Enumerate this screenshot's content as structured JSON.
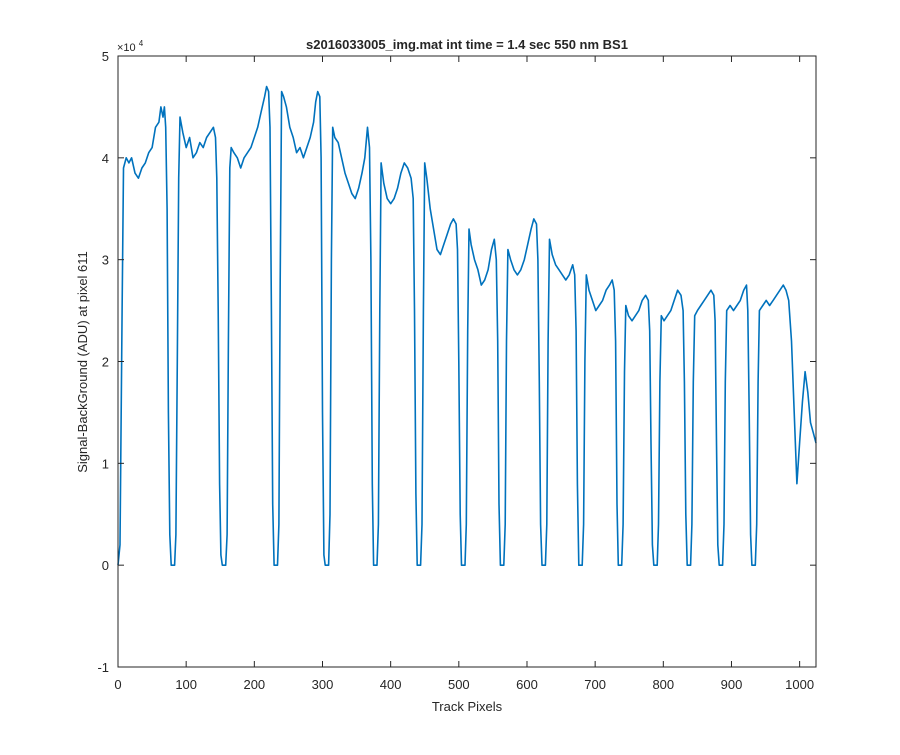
{
  "chart_data": {
    "type": "line",
    "title": "s2016033005_img.mat int time = 1.4 sec  550 nm BS1",
    "xlabel": "Track Pixels",
    "ylabel": "Signal-BackGround (ADU) at pixel 611",
    "xlim": [
      0,
      1024
    ],
    "ylim": [
      -1,
      5
    ],
    "y_multiplier_label": "×10",
    "y_multiplier_exponent": "4",
    "x_ticks": [
      "0",
      "100",
      "200",
      "300",
      "400",
      "500",
      "600",
      "700",
      "800",
      "900",
      "1000"
    ],
    "y_ticks": [
      "-1",
      "0",
      "1",
      "2",
      "3",
      "4",
      "5"
    ],
    "grid": false,
    "line_color": "#0072bd",
    "series": [
      {
        "points": [
          [
            0,
            0
          ],
          [
            3,
            0.2
          ],
          [
            6,
            2.5
          ],
          [
            8,
            3.9
          ],
          [
            12,
            4.0
          ],
          [
            16,
            3.95
          ],
          [
            20,
            4.0
          ],
          [
            25,
            3.85
          ],
          [
            30,
            3.8
          ],
          [
            35,
            3.9
          ],
          [
            40,
            3.95
          ],
          [
            45,
            4.05
          ],
          [
            50,
            4.1
          ],
          [
            55,
            4.3
          ],
          [
            60,
            4.35
          ],
          [
            63,
            4.5
          ],
          [
            66,
            4.4
          ],
          [
            68,
            4.5
          ],
          [
            70,
            4.3
          ],
          [
            72,
            3.5
          ],
          [
            74,
            1.5
          ],
          [
            76,
            0.3
          ],
          [
            78,
            0
          ],
          [
            83,
            0
          ],
          [
            85,
            0.3
          ],
          [
            87,
            2.0
          ],
          [
            89,
            3.8
          ],
          [
            91,
            4.4
          ],
          [
            95,
            4.25
          ],
          [
            100,
            4.1
          ],
          [
            105,
            4.2
          ],
          [
            110,
            4.0
          ],
          [
            115,
            4.05
          ],
          [
            120,
            4.15
          ],
          [
            125,
            4.1
          ],
          [
            130,
            4.2
          ],
          [
            135,
            4.25
          ],
          [
            140,
            4.3
          ],
          [
            143,
            4.2
          ],
          [
            145,
            3.8
          ],
          [
            147,
            2.5
          ],
          [
            149,
            0.8
          ],
          [
            151,
            0.1
          ],
          [
            153,
            0
          ],
          [
            158,
            0
          ],
          [
            160,
            0.3
          ],
          [
            162,
            2.2
          ],
          [
            164,
            3.9
          ],
          [
            166,
            4.1
          ],
          [
            170,
            4.05
          ],
          [
            175,
            4.0
          ],
          [
            180,
            3.9
          ],
          [
            185,
            4.0
          ],
          [
            190,
            4.05
          ],
          [
            195,
            4.1
          ],
          [
            200,
            4.2
          ],
          [
            205,
            4.3
          ],
          [
            210,
            4.45
          ],
          [
            215,
            4.6
          ],
          [
            218,
            4.7
          ],
          [
            221,
            4.65
          ],
          [
            223,
            4.3
          ],
          [
            225,
            2.5
          ],
          [
            227,
            0.6
          ],
          [
            229,
            0
          ],
          [
            234,
            0
          ],
          [
            236,
            0.4
          ],
          [
            238,
            2.8
          ],
          [
            240,
            4.65
          ],
          [
            243,
            4.6
          ],
          [
            247,
            4.5
          ],
          [
            252,
            4.3
          ],
          [
            257,
            4.2
          ],
          [
            262,
            4.05
          ],
          [
            267,
            4.1
          ],
          [
            272,
            4.0
          ],
          [
            277,
            4.1
          ],
          [
            282,
            4.2
          ],
          [
            287,
            4.35
          ],
          [
            290,
            4.55
          ],
          [
            293,
            4.65
          ],
          [
            296,
            4.6
          ],
          [
            298,
            4.0
          ],
          [
            300,
            1.5
          ],
          [
            302,
            0.1
          ],
          [
            304,
            0
          ],
          [
            309,
            0
          ],
          [
            311,
            0.5
          ],
          [
            313,
            3.0
          ],
          [
            315,
            4.3
          ],
          [
            318,
            4.2
          ],
          [
            323,
            4.15
          ],
          [
            328,
            4.0
          ],
          [
            333,
            3.85
          ],
          [
            338,
            3.75
          ],
          [
            343,
            3.65
          ],
          [
            348,
            3.6
          ],
          [
            353,
            3.7
          ],
          [
            358,
            3.85
          ],
          [
            362,
            4.0
          ],
          [
            366,
            4.3
          ],
          [
            369,
            4.1
          ],
          [
            371,
            3.0
          ],
          [
            373,
            0.8
          ],
          [
            375,
            0
          ],
          [
            380,
            0
          ],
          [
            382,
            0.4
          ],
          [
            384,
            2.5
          ],
          [
            386,
            3.95
          ],
          [
            390,
            3.75
          ],
          [
            395,
            3.6
          ],
          [
            400,
            3.55
          ],
          [
            405,
            3.6
          ],
          [
            410,
            3.7
          ],
          [
            415,
            3.85
          ],
          [
            420,
            3.95
          ],
          [
            425,
            3.9
          ],
          [
            430,
            3.8
          ],
          [
            433,
            3.6
          ],
          [
            435,
            2.5
          ],
          [
            437,
            0.7
          ],
          [
            439,
            0
          ],
          [
            444,
            0
          ],
          [
            446,
            0.4
          ],
          [
            448,
            2.5
          ],
          [
            450,
            3.95
          ],
          [
            453,
            3.8
          ],
          [
            458,
            3.5
          ],
          [
            463,
            3.3
          ],
          [
            468,
            3.1
          ],
          [
            473,
            3.05
          ],
          [
            478,
            3.15
          ],
          [
            483,
            3.25
          ],
          [
            488,
            3.35
          ],
          [
            492,
            3.4
          ],
          [
            496,
            3.35
          ],
          [
            498,
            3.1
          ],
          [
            500,
            2.0
          ],
          [
            502,
            0.5
          ],
          [
            504,
            0
          ],
          [
            509,
            0
          ],
          [
            511,
            0.4
          ],
          [
            513,
            2.3
          ],
          [
            515,
            3.3
          ],
          [
            518,
            3.15
          ],
          [
            523,
            3.0
          ],
          [
            528,
            2.9
          ],
          [
            533,
            2.75
          ],
          [
            538,
            2.8
          ],
          [
            543,
            2.9
          ],
          [
            548,
            3.1
          ],
          [
            552,
            3.2
          ],
          [
            555,
            3.0
          ],
          [
            557,
            2.2
          ],
          [
            559,
            0.6
          ],
          [
            561,
            0
          ],
          [
            566,
            0
          ],
          [
            568,
            0.4
          ],
          [
            570,
            2.2
          ],
          [
            572,
            3.1
          ],
          [
            576,
            3.0
          ],
          [
            581,
            2.9
          ],
          [
            586,
            2.85
          ],
          [
            591,
            2.9
          ],
          [
            596,
            3.0
          ],
          [
            601,
            3.15
          ],
          [
            606,
            3.3
          ],
          [
            610,
            3.4
          ],
          [
            614,
            3.35
          ],
          [
            616,
            3.0
          ],
          [
            618,
            1.8
          ],
          [
            620,
            0.4
          ],
          [
            622,
            0
          ],
          [
            627,
            0
          ],
          [
            629,
            0.4
          ],
          [
            631,
            2.2
          ],
          [
            633,
            3.2
          ],
          [
            637,
            3.05
          ],
          [
            642,
            2.95
          ],
          [
            647,
            2.9
          ],
          [
            652,
            2.85
          ],
          [
            657,
            2.8
          ],
          [
            662,
            2.85
          ],
          [
            667,
            2.95
          ],
          [
            670,
            2.85
          ],
          [
            672,
            2.3
          ],
          [
            674,
            0.8
          ],
          [
            676,
            0
          ],
          [
            681,
            0
          ],
          [
            683,
            0.4
          ],
          [
            685,
            2.0
          ],
          [
            687,
            2.85
          ],
          [
            691,
            2.7
          ],
          [
            696,
            2.6
          ],
          [
            701,
            2.5
          ],
          [
            706,
            2.55
          ],
          [
            711,
            2.6
          ],
          [
            716,
            2.7
          ],
          [
            721,
            2.75
          ],
          [
            725,
            2.8
          ],
          [
            728,
            2.7
          ],
          [
            730,
            2.2
          ],
          [
            732,
            0.6
          ],
          [
            734,
            0
          ],
          [
            739,
            0
          ],
          [
            741,
            0.4
          ],
          [
            743,
            1.9
          ],
          [
            745,
            2.55
          ],
          [
            749,
            2.45
          ],
          [
            754,
            2.4
          ],
          [
            759,
            2.45
          ],
          [
            764,
            2.5
          ],
          [
            769,
            2.6
          ],
          [
            774,
            2.65
          ],
          [
            778,
            2.6
          ],
          [
            780,
            2.3
          ],
          [
            782,
            1.2
          ],
          [
            784,
            0.2
          ],
          [
            786,
            0
          ],
          [
            791,
            0
          ],
          [
            793,
            0.4
          ],
          [
            795,
            1.8
          ],
          [
            797,
            2.45
          ],
          [
            801,
            2.4
          ],
          [
            806,
            2.45
          ],
          [
            811,
            2.5
          ],
          [
            816,
            2.6
          ],
          [
            821,
            2.7
          ],
          [
            826,
            2.65
          ],
          [
            829,
            2.5
          ],
          [
            831,
            1.8
          ],
          [
            833,
            0.5
          ],
          [
            835,
            0
          ],
          [
            840,
            0
          ],
          [
            842,
            0.4
          ],
          [
            844,
            1.8
          ],
          [
            846,
            2.45
          ],
          [
            850,
            2.5
          ],
          [
            855,
            2.55
          ],
          [
            860,
            2.6
          ],
          [
            865,
            2.65
          ],
          [
            870,
            2.7
          ],
          [
            874,
            2.65
          ],
          [
            876,
            2.4
          ],
          [
            878,
            1.2
          ],
          [
            880,
            0.2
          ],
          [
            882,
            0
          ],
          [
            887,
            0
          ],
          [
            889,
            0.4
          ],
          [
            891,
            1.8
          ],
          [
            893,
            2.5
          ],
          [
            898,
            2.55
          ],
          [
            903,
            2.5
          ],
          [
            908,
            2.55
          ],
          [
            913,
            2.6
          ],
          [
            918,
            2.7
          ],
          [
            922,
            2.75
          ],
          [
            924,
            2.5
          ],
          [
            926,
            1.5
          ],
          [
            928,
            0.3
          ],
          [
            930,
            0
          ],
          [
            935,
            0
          ],
          [
            937,
            0.4
          ],
          [
            939,
            1.8
          ],
          [
            941,
            2.5
          ],
          [
            946,
            2.55
          ],
          [
            951,
            2.6
          ],
          [
            956,
            2.55
          ],
          [
            961,
            2.6
          ],
          [
            966,
            2.65
          ],
          [
            971,
            2.7
          ],
          [
            976,
            2.75
          ],
          [
            980,
            2.7
          ],
          [
            984,
            2.6
          ],
          [
            988,
            2.2
          ],
          [
            992,
            1.5
          ],
          [
            996,
            0.8
          ],
          [
            1000,
            1.2
          ],
          [
            1004,
            1.6
          ],
          [
            1008,
            1.9
          ],
          [
            1012,
            1.7
          ],
          [
            1016,
            1.4
          ],
          [
            1020,
            1.3
          ],
          [
            1024,
            1.2
          ]
        ]
      }
    ]
  }
}
